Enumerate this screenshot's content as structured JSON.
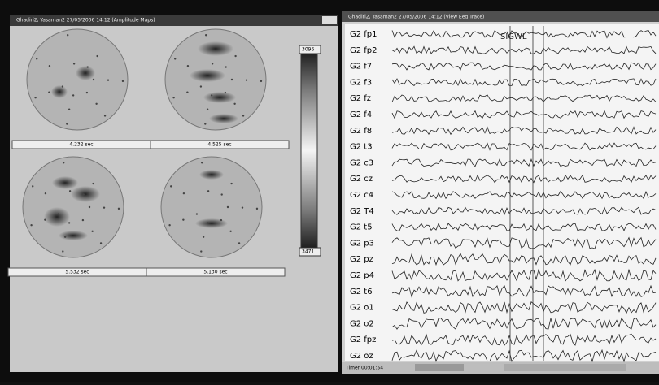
{
  "maps_window": {
    "title": "Ghadiri2, Yasaman2 27/05/2006 14:12 (Amplitude Maps)",
    "maps": [
      {
        "time": "4.232 sec"
      },
      {
        "time": "4.525 sec"
      },
      {
        "time": "5.532 sec"
      },
      {
        "time": "5.130 sec"
      }
    ],
    "scale": {
      "top": "3096",
      "bottom": "3471"
    }
  },
  "trace_window": {
    "title": "Ghadiri2, Yasaman2 27/05/2006 14:12 (View Eeg Trace)",
    "annotation": "SIGWL",
    "channels": [
      "G2 fp1",
      "G2 fp2",
      "G2 f7",
      "G2 f3",
      "G2 fz",
      "G2 f4",
      "G2 f8",
      "G2 t3",
      "G2 c3",
      "G2 cz",
      "G2 c4",
      "G2 T4",
      "G2 t5",
      "G2 p3",
      "G2 pz",
      "G2 p4",
      "G2 t6",
      "G2 o1",
      "G2 o2",
      "G2 fpz",
      "G2 oz"
    ],
    "timer": "Timer 00:01:54"
  }
}
